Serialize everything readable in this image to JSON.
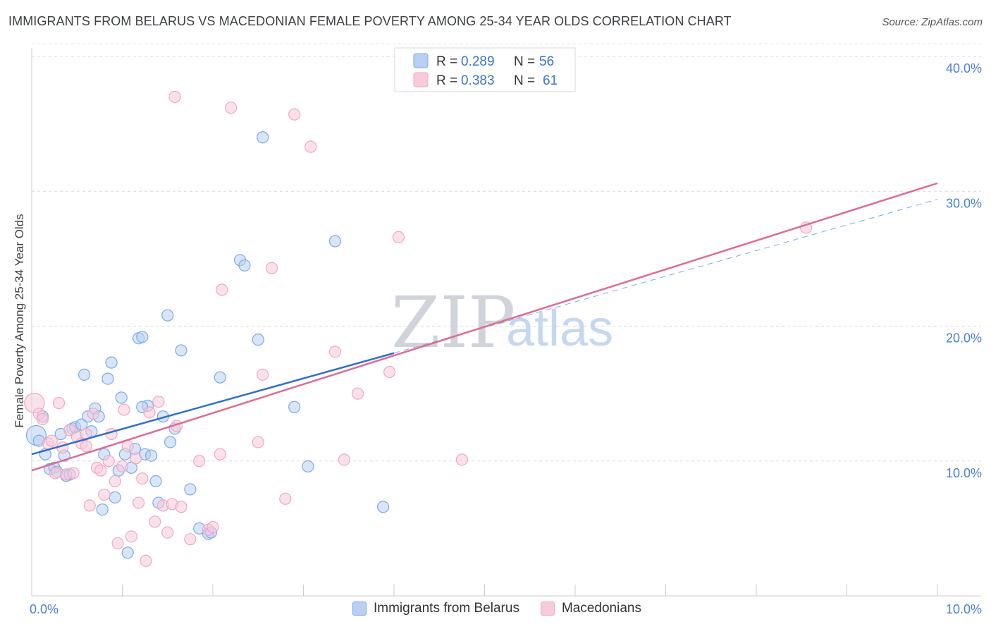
{
  "chart_data": {
    "type": "scatter",
    "title": "IMMIGRANTS FROM BELARUS VS MACEDONIAN FEMALE POVERTY AMONG 25-34 YEAR OLDS CORRELATION CHART",
    "source": "Source: ZipAtlas.com",
    "xlabel": "",
    "ylabel": "Female Poverty Among 25-34 Year Olds",
    "xlim": [
      0,
      10
    ],
    "ylim": [
      0,
      40
    ],
    "x_tick_labels": [
      "0.0%",
      "10.0%"
    ],
    "y_ticks": [
      10,
      20,
      30,
      40
    ],
    "y_tick_labels": [
      "10.0%",
      "20.0%",
      "30.0%",
      "40.0%"
    ],
    "watermark": {
      "zip": "ZIP",
      "atlas": "atlas"
    },
    "legend": {
      "r_label": "R =",
      "n_label": "N =",
      "entries": [
        {
          "r": "0.289",
          "n": "56"
        },
        {
          "r": "0.383",
          "n": "61"
        }
      ]
    },
    "series": [
      {
        "name": "Immigrants from Belarus",
        "color": "#7aaae8",
        "fill": "#b9d0f3",
        "line_color": "#2f6fcf",
        "trend": {
          "x0": 0.0,
          "y0": 10.5,
          "x1": 4.0,
          "y1": 18.0,
          "dash_x1": 10.0,
          "dash_y1": 29.4
        },
        "points": [
          [
            0.05,
            11.9
          ],
          [
            0.08,
            11.5
          ],
          [
            0.12,
            13.3
          ],
          [
            0.15,
            10.5
          ],
          [
            0.2,
            9.4
          ],
          [
            0.25,
            9.5
          ],
          [
            0.28,
            9.2
          ],
          [
            0.32,
            12.0
          ],
          [
            0.36,
            10.4
          ],
          [
            0.38,
            8.9
          ],
          [
            0.42,
            9.0
          ],
          [
            0.45,
            12.4
          ],
          [
            0.48,
            12.5
          ],
          [
            0.55,
            12.7
          ],
          [
            0.58,
            16.4
          ],
          [
            0.62,
            13.3
          ],
          [
            0.66,
            12.2
          ],
          [
            0.7,
            13.9
          ],
          [
            0.74,
            13.3
          ],
          [
            0.78,
            6.4
          ],
          [
            0.8,
            10.5
          ],
          [
            0.84,
            16.1
          ],
          [
            0.88,
            17.3
          ],
          [
            0.92,
            7.3
          ],
          [
            0.96,
            9.3
          ],
          [
            0.99,
            14.7
          ],
          [
            1.03,
            10.5
          ],
          [
            1.06,
            3.2
          ],
          [
            1.1,
            9.5
          ],
          [
            1.14,
            10.9
          ],
          [
            1.18,
            19.1
          ],
          [
            1.22,
            19.2
          ],
          [
            1.25,
            10.5
          ],
          [
            1.28,
            14.1
          ],
          [
            1.32,
            10.4
          ],
          [
            1.37,
            8.5
          ],
          [
            1.4,
            6.9
          ],
          [
            1.45,
            13.3
          ],
          [
            1.5,
            20.8
          ],
          [
            1.53,
            11.4
          ],
          [
            1.58,
            12.4
          ],
          [
            1.65,
            18.2
          ],
          [
            1.75,
            7.9
          ],
          [
            1.85,
            5.0
          ],
          [
            1.95,
            4.6
          ],
          [
            1.98,
            4.7
          ],
          [
            2.08,
            16.2
          ],
          [
            2.3,
            24.9
          ],
          [
            2.35,
            24.5
          ],
          [
            2.5,
            19.0
          ],
          [
            2.55,
            34.0
          ],
          [
            2.9,
            14.0
          ],
          [
            3.05,
            9.6
          ],
          [
            3.35,
            26.3
          ],
          [
            3.88,
            6.6
          ],
          [
            1.22,
            14.0
          ]
        ]
      },
      {
        "name": "Macedonians",
        "color": "#f2a6bf",
        "fill": "#f8cbd9",
        "line_color": "#e06a94",
        "trend": {
          "x0": 0.0,
          "y0": 9.3,
          "x1": 10.0,
          "y1": 30.6
        },
        "points": [
          [
            0.03,
            14.3
          ],
          [
            0.08,
            13.5
          ],
          [
            0.12,
            13.1
          ],
          [
            0.18,
            11.3
          ],
          [
            0.22,
            11.5
          ],
          [
            0.26,
            9.1
          ],
          [
            0.3,
            14.3
          ],
          [
            0.34,
            11.0
          ],
          [
            0.38,
            9.0
          ],
          [
            0.42,
            12.3
          ],
          [
            0.46,
            9.1
          ],
          [
            0.5,
            11.8
          ],
          [
            0.55,
            11.3
          ],
          [
            0.6,
            11.1
          ],
          [
            0.64,
            6.7
          ],
          [
            0.68,
            13.5
          ],
          [
            0.72,
            9.5
          ],
          [
            0.76,
            9.3
          ],
          [
            0.8,
            7.5
          ],
          [
            0.85,
            10.0
          ],
          [
            0.88,
            12.0
          ],
          [
            0.92,
            8.5
          ],
          [
            0.95,
            3.9
          ],
          [
            1.0,
            9.6
          ],
          [
            1.02,
            13.8
          ],
          [
            1.06,
            11.1
          ],
          [
            1.1,
            4.4
          ],
          [
            1.15,
            10.2
          ],
          [
            1.18,
            6.9
          ],
          [
            1.22,
            8.7
          ],
          [
            1.26,
            2.6
          ],
          [
            1.3,
            13.6
          ],
          [
            1.36,
            5.5
          ],
          [
            1.4,
            14.4
          ],
          [
            1.45,
            6.7
          ],
          [
            1.5,
            4.7
          ],
          [
            1.55,
            6.8
          ],
          [
            1.6,
            12.6
          ],
          [
            1.65,
            6.6
          ],
          [
            1.75,
            4.2
          ],
          [
            1.85,
            10.0
          ],
          [
            1.95,
            4.9
          ],
          [
            2.0,
            5.1
          ],
          [
            2.08,
            10.5
          ],
          [
            2.1,
            22.7
          ],
          [
            2.2,
            36.2
          ],
          [
            2.5,
            11.4
          ],
          [
            2.55,
            16.4
          ],
          [
            2.65,
            24.3
          ],
          [
            2.8,
            7.2
          ],
          [
            2.9,
            35.7
          ],
          [
            3.08,
            33.3
          ],
          [
            3.35,
            18.1
          ],
          [
            3.45,
            10.1
          ],
          [
            3.6,
            15.0
          ],
          [
            3.95,
            16.6
          ],
          [
            4.05,
            26.6
          ],
          [
            4.75,
            10.1
          ],
          [
            8.55,
            27.3
          ],
          [
            1.58,
            37.0
          ],
          [
            0.6,
            12.0
          ]
        ]
      }
    ]
  },
  "bottom_legend": [
    "Immigrants from Belarus",
    "Macedonians"
  ]
}
